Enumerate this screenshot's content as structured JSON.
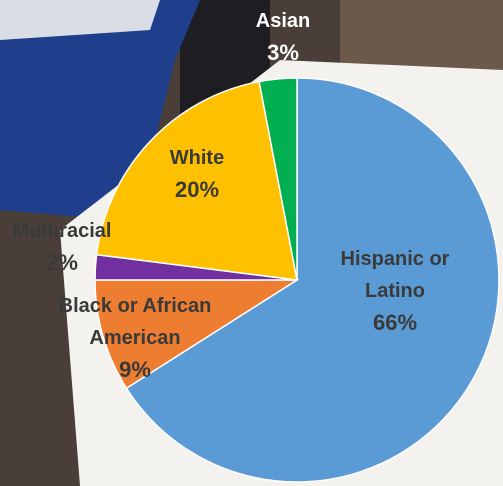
{
  "chart_data": {
    "type": "pie",
    "categories": [
      "Hispanic or Latino",
      "Black or African American",
      "Multiracial",
      "White",
      "Asian"
    ],
    "values": [
      66,
      9,
      2,
      20,
      3
    ],
    "value_labels": [
      "66%",
      "9%",
      "2%",
      "20%",
      "3%"
    ],
    "colors": [
      "#5b9bd5",
      "#ed7d31",
      "#7030a0",
      "#ffc000",
      "#00b050"
    ],
    "start_angle": 90,
    "direction": "clockwise"
  }
}
